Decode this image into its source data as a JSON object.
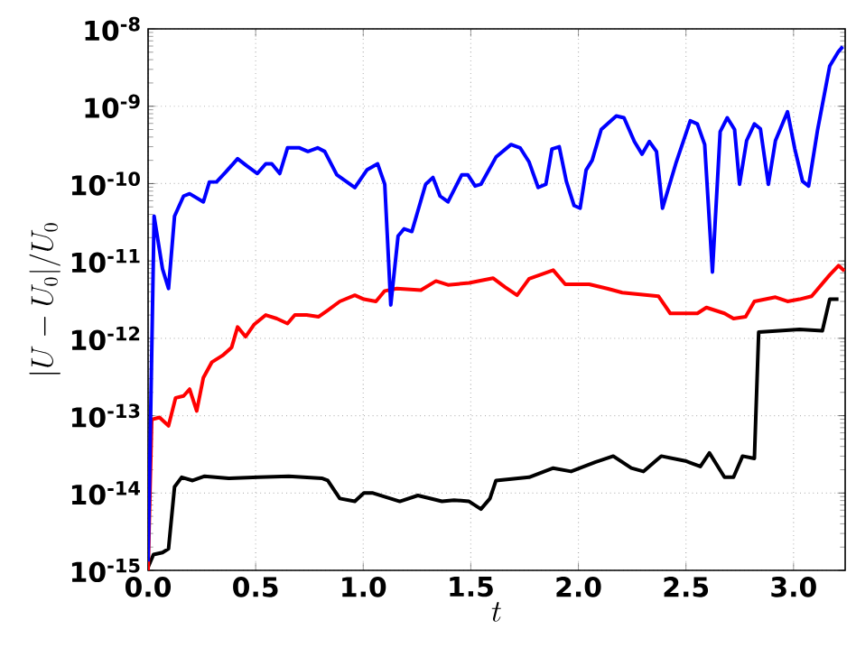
{
  "chart_data": {
    "type": "line",
    "xlabel": "t",
    "ylabel": "|U-U_0|/U_0",
    "log": "y",
    "grid": true,
    "line_style": "solid",
    "marker": "none",
    "xlim": [
      0,
      3.24
    ],
    "ylim": [
      1e-15,
      1e-08
    ],
    "xticks": [
      {
        "value": 0,
        "label": "0.0"
      },
      {
        "value": 0.5,
        "label": "0.5"
      },
      {
        "value": 1,
        "label": "1.0"
      },
      {
        "value": 1.5,
        "label": "1.5"
      },
      {
        "value": 2,
        "label": "2.0"
      },
      {
        "value": 2.5,
        "label": "2.5"
      },
      {
        "value": 3,
        "label": "3.0"
      }
    ],
    "yticks": [
      {
        "value": 1e-15,
        "label": "10$^{-15}$"
      },
      {
        "value": 1e-14,
        "label": "10$^{-14}$"
      },
      {
        "value": 1e-13,
        "label": "10$^{-13}$"
      },
      {
        "value": 1e-12,
        "label": "10$^{-12}$"
      },
      {
        "value": 1e-11,
        "label": "10$^{-11}$"
      },
      {
        "value": 1e-10,
        "label": "10$^{-10}$"
      },
      {
        "value": 1e-09,
        "label": "10$^{-9}$"
      },
      {
        "value": 1e-08,
        "label": "10$^{-8}$"
      }
    ],
    "series": [
      {
        "color": "#0000ff",
        "x": [
          0,
          0.028,
          0.067,
          0.095,
          0.123,
          0.165,
          0.193,
          0.257,
          0.285,
          0.318,
          0.36,
          0.416,
          0.458,
          0.508,
          0.547,
          0.575,
          0.612,
          0.648,
          0.704,
          0.743,
          0.788,
          0.821,
          0.877,
          0.961,
          1.017,
          1.067,
          1.1,
          1.128,
          1.162,
          1.19,
          1.226,
          1.29,
          1.324,
          1.357,
          1.394,
          1.458,
          1.486,
          1.52,
          1.547,
          1.617,
          1.687,
          1.729,
          1.771,
          1.813,
          1.849,
          1.877,
          1.911,
          1.944,
          1.98,
          2.008,
          2.036,
          2.064,
          2.106,
          2.176,
          2.212,
          2.26,
          2.296,
          2.33,
          2.363,
          2.391,
          2.455,
          2.52,
          2.553,
          2.587,
          2.623,
          2.659,
          2.692,
          2.726,
          2.749,
          2.782,
          2.818,
          2.846,
          2.883,
          2.916,
          2.972,
          3.006,
          3.042,
          3.07,
          3.112,
          3.168,
          3.209,
          3.229
        ],
        "values": [
          1.3e-15,
          3.8e-11,
          7.9e-12,
          4.4e-12,
          3.8e-11,
          6.9e-11,
          7.4e-11,
          5.8e-11,
          1.05e-10,
          1.05e-10,
          1.4e-10,
          2.1e-10,
          1.7e-10,
          1.35e-10,
          1.8e-10,
          1.8e-10,
          1.35e-10,
          2.9e-10,
          2.9e-10,
          2.6e-10,
          2.9e-10,
          2.6e-10,
          1.3e-10,
          8.9e-11,
          1.5e-10,
          1.8e-10,
          9.8e-11,
          2.7e-12,
          2.1e-11,
          2.6e-11,
          2.4e-11,
          9.8e-11,
          1.2e-10,
          6.9e-11,
          5.8e-11,
          1.3e-10,
          1.3e-10,
          9.3e-11,
          9.8e-11,
          2.2e-10,
          3.2e-10,
          2.9e-10,
          1.9e-10,
          8.9e-11,
          9.8e-11,
          2.8e-10,
          3e-10,
          1.07e-10,
          5.2e-11,
          4.8e-11,
          1.5e-10,
          2e-10,
          5e-10,
          7.5e-10,
          7.1e-10,
          3.5e-10,
          2.4e-10,
          3.5e-10,
          2.6e-10,
          4.8e-11,
          1.9e-10,
          6.5e-10,
          5.9e-10,
          3.2e-10,
          7.2e-12,
          4.7e-10,
          7.1e-10,
          5e-10,
          9.8e-11,
          3.6e-10,
          5.9e-10,
          5.1e-10,
          9.8e-11,
          3.6e-10,
          8.5e-10,
          2.8e-10,
          1.07e-10,
          9.3e-11,
          5e-10,
          3.3e-09,
          5.1e-09,
          5.9e-09
        ]
      },
      {
        "color": "#ff0000",
        "x": [
          0,
          0.017,
          0.053,
          0.095,
          0.128,
          0.165,
          0.193,
          0.226,
          0.257,
          0.296,
          0.346,
          0.388,
          0.416,
          0.453,
          0.492,
          0.547,
          0.598,
          0.648,
          0.682,
          0.737,
          0.793,
          0.835,
          0.891,
          0.961,
          1.003,
          1.059,
          1.1,
          1.156,
          1.268,
          1.338,
          1.394,
          1.492,
          1.603,
          1.659,
          1.715,
          1.771,
          1.883,
          1.939,
          2.05,
          2.134,
          2.204,
          2.372,
          2.427,
          2.553,
          2.595,
          2.679,
          2.721,
          2.777,
          2.818,
          2.916,
          2.972,
          3.028,
          3.084,
          3.168,
          3.209,
          3.237
        ],
        "values": [
          1e-15,
          8.9e-14,
          9.5e-14,
          7.4e-14,
          1.7e-13,
          1.8e-13,
          2.2e-13,
          1.15e-13,
          3.1e-13,
          4.9e-13,
          6e-13,
          7.6e-13,
          1.4e-12,
          1.05e-12,
          1.5e-12,
          2e-12,
          1.8e-12,
          1.55e-12,
          2e-12,
          2e-12,
          1.9e-12,
          2.3e-12,
          3e-12,
          3.6e-12,
          3.2e-12,
          3e-12,
          4.1e-12,
          4.4e-12,
          4.2e-12,
          5.5e-12,
          4.9e-12,
          5.2e-12,
          6e-12,
          4.6e-12,
          3.6e-12,
          5.9e-12,
          7.6e-12,
          5e-12,
          5e-12,
          4.4e-12,
          3.9e-12,
          3.5e-12,
          2.1e-12,
          2.1e-12,
          2.5e-12,
          2.1e-12,
          1.8e-12,
          1.9e-12,
          3e-12,
          3.4e-12,
          3e-12,
          3.2e-12,
          3.5e-12,
          6.6e-12,
          8.7e-12,
          7.4e-12
        ]
      },
      {
        "color": "#000000",
        "x": [
          0,
          0.025,
          0.067,
          0.095,
          0.123,
          0.156,
          0.207,
          0.263,
          0.374,
          0.514,
          0.654,
          0.807,
          0.835,
          0.891,
          0.961,
          1.003,
          1.045,
          1.17,
          1.254,
          1.366,
          1.422,
          1.492,
          1.547,
          1.589,
          1.617,
          1.771,
          1.883,
          1.966,
          2.078,
          2.162,
          2.246,
          2.302,
          2.385,
          2.497,
          2.567,
          2.609,
          2.679,
          2.721,
          2.763,
          2.818,
          2.838,
          3.028,
          3.134,
          3.168,
          3.209
        ],
        "values": [
          1.1e-15,
          1.6e-15,
          1.7e-15,
          1.9e-15,
          1.2e-14,
          1.6e-14,
          1.45e-14,
          1.65e-14,
          1.55e-14,
          1.6e-14,
          1.65e-14,
          1.55e-14,
          1.45e-14,
          8.5e-15,
          7.8e-15,
          1e-14,
          1e-14,
          7.8e-15,
          9.3e-15,
          7.8e-15,
          8.1e-15,
          7.8e-15,
          6.2e-15,
          8.5e-15,
          1.45e-14,
          1.6e-14,
          2.1e-14,
          1.9e-14,
          2.5e-14,
          3e-14,
          2.1e-14,
          1.9e-14,
          3e-14,
          2.6e-14,
          2.2e-14,
          3.3e-14,
          1.6e-14,
          1.6e-14,
          3e-14,
          2.8e-14,
          1.2e-12,
          1.3e-12,
          1.25e-12,
          3.2e-12,
          3.2e-12
        ]
      }
    ]
  }
}
